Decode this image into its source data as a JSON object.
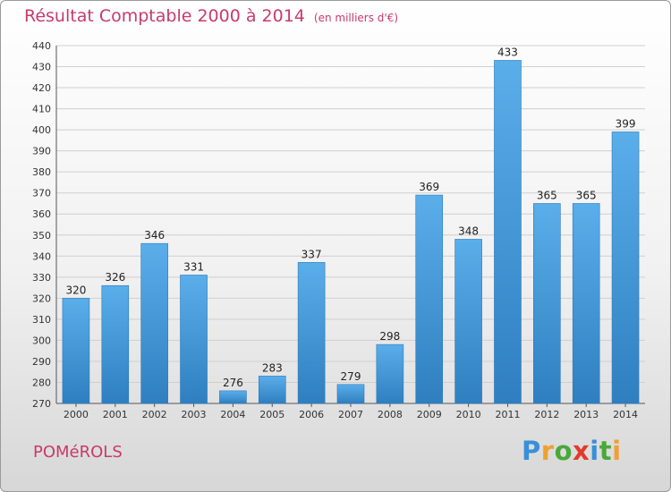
{
  "chart_data": {
    "type": "bar",
    "title": "Résultat Comptable 2000 à 2014",
    "subtitle": "(en milliers d'€)",
    "categories": [
      "2000",
      "2001",
      "2002",
      "2003",
      "2004",
      "2005",
      "2006",
      "2007",
      "2008",
      "2009",
      "2010",
      "2011",
      "2012",
      "2013",
      "2014"
    ],
    "values": [
      320,
      326,
      346,
      331,
      276,
      283,
      337,
      279,
      298,
      369,
      348,
      433,
      365,
      365,
      399
    ],
    "ylim": [
      270,
      440
    ],
    "yticks": [
      270,
      280,
      290,
      300,
      310,
      320,
      330,
      340,
      350,
      360,
      370,
      380,
      390,
      400,
      410,
      420,
      430,
      440
    ],
    "xlabel": "",
    "ylabel": "",
    "grid": true,
    "bar_color": "#3a92d8"
  },
  "footer": {
    "commune": "POMéROLS",
    "logo_letters": [
      {
        "ch": "P",
        "color": "#3a8fd8"
      },
      {
        "ch": "r",
        "color": "#f0a030"
      },
      {
        "ch": "o",
        "color": "#4aa83a"
      },
      {
        "ch": "x",
        "color": "#e23a2a"
      },
      {
        "ch": "i",
        "color": "#3a8fd8"
      },
      {
        "ch": "t",
        "color": "#4aa83a"
      },
      {
        "ch": "i",
        "color": "#f0a030"
      }
    ]
  }
}
